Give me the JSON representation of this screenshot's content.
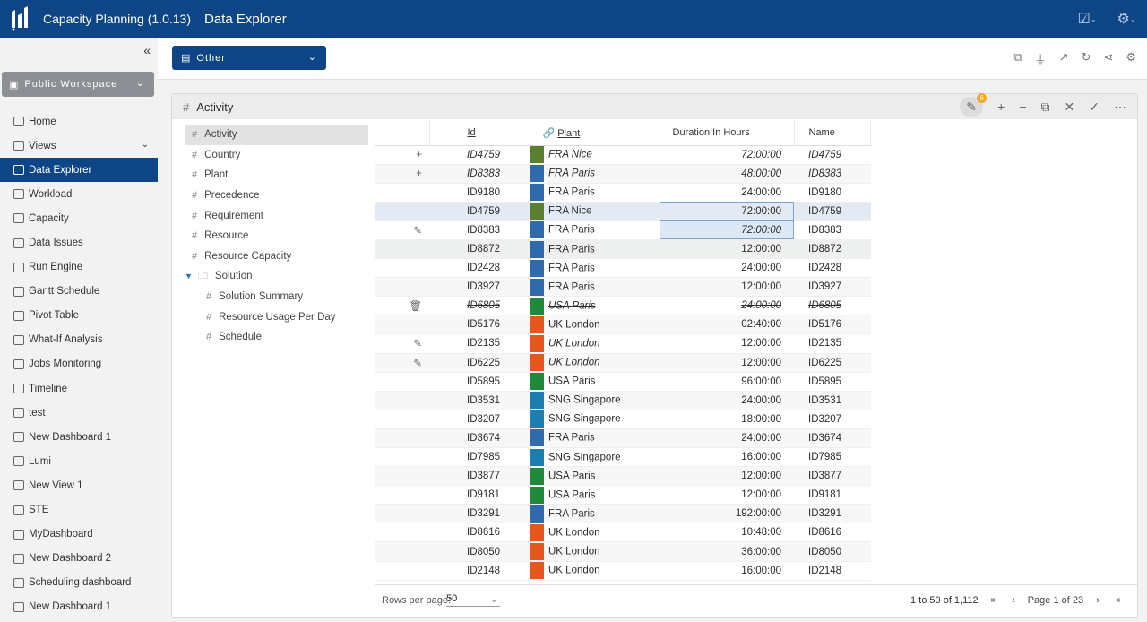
{
  "header": {
    "app_title": "Capacity Planning (1.0.13)",
    "page_title": "Data Explorer"
  },
  "sidebar": {
    "workspace": "Public Workspace",
    "items": [
      {
        "label": "Home"
      },
      {
        "label": "Views"
      },
      {
        "label": "Data Explorer"
      },
      {
        "label": "Workload"
      },
      {
        "label": "Capacity"
      },
      {
        "label": "Data Issues"
      },
      {
        "label": "Run Engine"
      },
      {
        "label": "Gantt Schedule"
      },
      {
        "label": "Pivot Table"
      },
      {
        "label": "What-If Analysis"
      },
      {
        "label": "Jobs Monitoring"
      },
      {
        "label": "Timeline"
      },
      {
        "label": "test"
      },
      {
        "label": "New Dashboard 1"
      },
      {
        "label": "Lumi"
      },
      {
        "label": "New View 1"
      },
      {
        "label": "STE"
      },
      {
        "label": "MyDashboard"
      },
      {
        "label": "New Dashboard 2"
      },
      {
        "label": "Scheduling dashboard"
      },
      {
        "label": "New Dashboard 1"
      }
    ]
  },
  "toolbar": {
    "scenario_select": "Other"
  },
  "panel": {
    "title": "Activity",
    "edit_badge": "6"
  },
  "tree": [
    {
      "label": "Activity"
    },
    {
      "label": "Country"
    },
    {
      "label": "Plant"
    },
    {
      "label": "Precedence"
    },
    {
      "label": "Requirement"
    },
    {
      "label": "Resource"
    },
    {
      "label": "Resource Capacity"
    },
    {
      "label": "Solution"
    },
    {
      "label": "Solution Summary"
    },
    {
      "label": "Resource Usage Per Day"
    },
    {
      "label": "Schedule"
    }
  ],
  "table": {
    "headers": {
      "id": "Id",
      "plant": "Plant",
      "duration": "Duration In Hours",
      "name": "Name"
    },
    "rows": [
      {
        "action": "+",
        "id": "ID4759",
        "plant": "FRA Nice",
        "color": "#5a7f2e",
        "duration": "72:00:00",
        "name": "ID4759",
        "style": "italic"
      },
      {
        "action": "+",
        "id": "ID8383",
        "plant": "FRA Paris",
        "color": "#2f6aad",
        "duration": "48:00:00",
        "name": "ID8383",
        "style": "italic"
      },
      {
        "action": "",
        "id": "ID9180",
        "plant": "FRA Paris",
        "color": "#2f6aad",
        "duration": "24:00:00",
        "name": "ID9180",
        "style": ""
      },
      {
        "action": "",
        "id": "ID4759",
        "plant": "FRA Nice",
        "color": "#5a7f2e",
        "duration": "72:00:00",
        "name": "ID4759",
        "style": ""
      },
      {
        "action": "✎",
        "id": "ID8383",
        "plant": "FRA Paris",
        "color": "#2f6aad",
        "duration": "72:00:00",
        "name": "ID8383",
        "style": "dur-italic"
      },
      {
        "action": "",
        "id": "ID8872",
        "plant": "FRA Paris",
        "color": "#2f6aad",
        "duration": "12:00:00",
        "name": "ID8872",
        "style": ""
      },
      {
        "action": "",
        "id": "ID2428",
        "plant": "FRA Paris",
        "color": "#2f6aad",
        "duration": "24:00:00",
        "name": "ID2428",
        "style": ""
      },
      {
        "action": "",
        "id": "ID3927",
        "plant": "FRA Paris",
        "color": "#2f6aad",
        "duration": "12:00:00",
        "name": "ID3927",
        "style": ""
      },
      {
        "action": "🗑",
        "id": "ID6805",
        "plant": "USA Paris",
        "color": "#1f8a3a",
        "duration": "24:00:00",
        "name": "ID6805",
        "style": "strike"
      },
      {
        "action": "",
        "id": "ID5176",
        "plant": "UK London",
        "color": "#e8561b",
        "duration": "02:40:00",
        "name": "ID5176",
        "style": ""
      },
      {
        "action": "✎",
        "id": "ID2135",
        "plant": "UK London",
        "color": "#e8561b",
        "duration": "12:00:00",
        "name": "ID2135",
        "style": "plant-italic"
      },
      {
        "action": "✎",
        "id": "ID6225",
        "plant": "UK London",
        "color": "#e8561b",
        "duration": "12:00:00",
        "name": "ID6225",
        "style": "plant-italic"
      },
      {
        "action": "",
        "id": "ID5895",
        "plant": "USA Paris",
        "color": "#1f8a3a",
        "duration": "96:00:00",
        "name": "ID5895",
        "style": ""
      },
      {
        "action": "",
        "id": "ID3531",
        "plant": "SNG Singapore",
        "color": "#1a7fb0",
        "duration": "24:00:00",
        "name": "ID3531",
        "style": ""
      },
      {
        "action": "",
        "id": "ID3207",
        "plant": "SNG Singapore",
        "color": "#1a7fb0",
        "duration": "18:00:00",
        "name": "ID3207",
        "style": ""
      },
      {
        "action": "",
        "id": "ID3674",
        "plant": "FRA Paris",
        "color": "#2f6aad",
        "duration": "24:00:00",
        "name": "ID3674",
        "style": ""
      },
      {
        "action": "",
        "id": "ID7985",
        "plant": "SNG Singapore",
        "color": "#1a7fb0",
        "duration": "16:00:00",
        "name": "ID7985",
        "style": ""
      },
      {
        "action": "",
        "id": "ID3877",
        "plant": "USA Paris",
        "color": "#1f8a3a",
        "duration": "12:00:00",
        "name": "ID3877",
        "style": ""
      },
      {
        "action": "",
        "id": "ID9181",
        "plant": "USA Paris",
        "color": "#1f8a3a",
        "duration": "12:00:00",
        "name": "ID9181",
        "style": ""
      },
      {
        "action": "",
        "id": "ID3291",
        "plant": "FRA Paris",
        "color": "#2f6aad",
        "duration": "192:00:00",
        "name": "ID3291",
        "style": ""
      },
      {
        "action": "",
        "id": "ID8616",
        "plant": "UK London",
        "color": "#e8561b",
        "duration": "10:48:00",
        "name": "ID8616",
        "style": ""
      },
      {
        "action": "",
        "id": "ID8050",
        "plant": "UK London",
        "color": "#e8561b",
        "duration": "36:00:00",
        "name": "ID8050",
        "style": ""
      },
      {
        "action": "",
        "id": "ID2148",
        "plant": "UK London",
        "color": "#e8561b",
        "duration": "16:00:00",
        "name": "ID2148",
        "style": ""
      }
    ]
  },
  "footer": {
    "rows_per_page_label": "Rows per page:",
    "rows_per_page": "50",
    "range": "1 to 50 of 1,112",
    "page": "Page 1 of 23"
  }
}
